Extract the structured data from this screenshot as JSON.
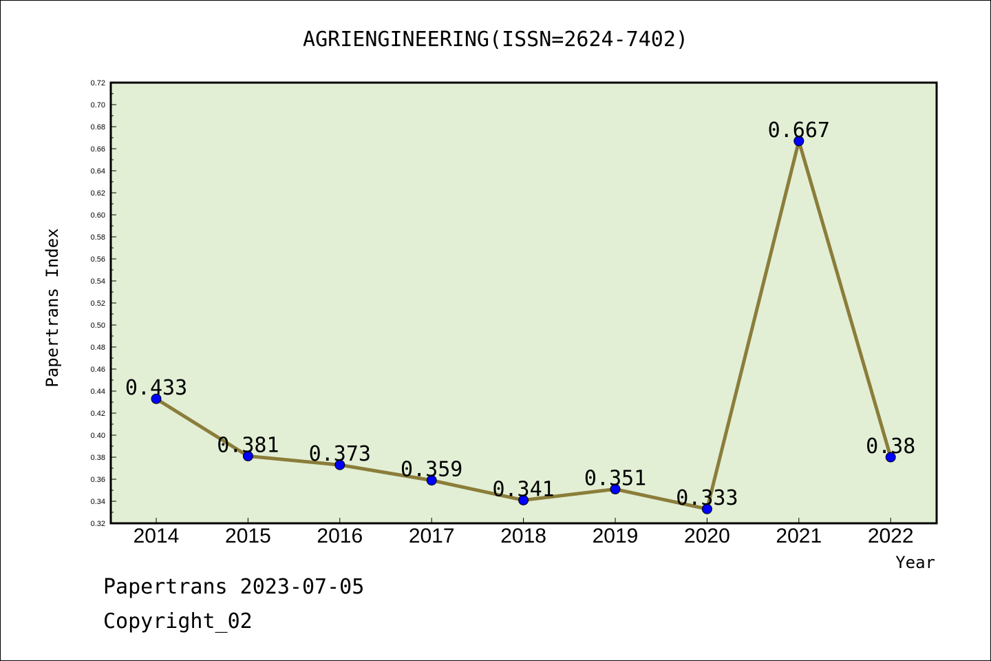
{
  "footer": {
    "line1": "Papertrans 2023-07-05",
    "line2": "Copyright_02"
  },
  "colors": {
    "plot_background": "#e2efd5",
    "line": "#8b7d3a",
    "marker": "#0000ff"
  },
  "chart_data": {
    "type": "line",
    "title": "AGRIENGINEERING(ISSN=2624-7402)",
    "xlabel": "Year",
    "ylabel": "Papertrans Index",
    "categories": [
      "2014",
      "2015",
      "2016",
      "2017",
      "2018",
      "2019",
      "2020",
      "2021",
      "2022"
    ],
    "series": [
      {
        "values": [
          0.433,
          0.381,
          0.373,
          0.359,
          0.341,
          0.351,
          0.333,
          0.667,
          0.38
        ],
        "labels": [
          "0.433",
          "0.381",
          "0.373",
          "0.359",
          "0.341",
          "0.351",
          "0.333",
          "0.667",
          "0.38"
        ]
      }
    ],
    "ylim": [
      0.32,
      0.72
    ],
    "yticks": [
      "0.32",
      "0.34",
      "0.36",
      "0.38",
      "0.40",
      "0.42",
      "0.44",
      "0.46",
      "0.48",
      "0.50",
      "0.52",
      "0.54",
      "0.56",
      "0.58",
      "0.60",
      "0.62",
      "0.64",
      "0.66",
      "0.68",
      "0.70",
      "0.72"
    ],
    "grid": false,
    "legend": "none"
  }
}
